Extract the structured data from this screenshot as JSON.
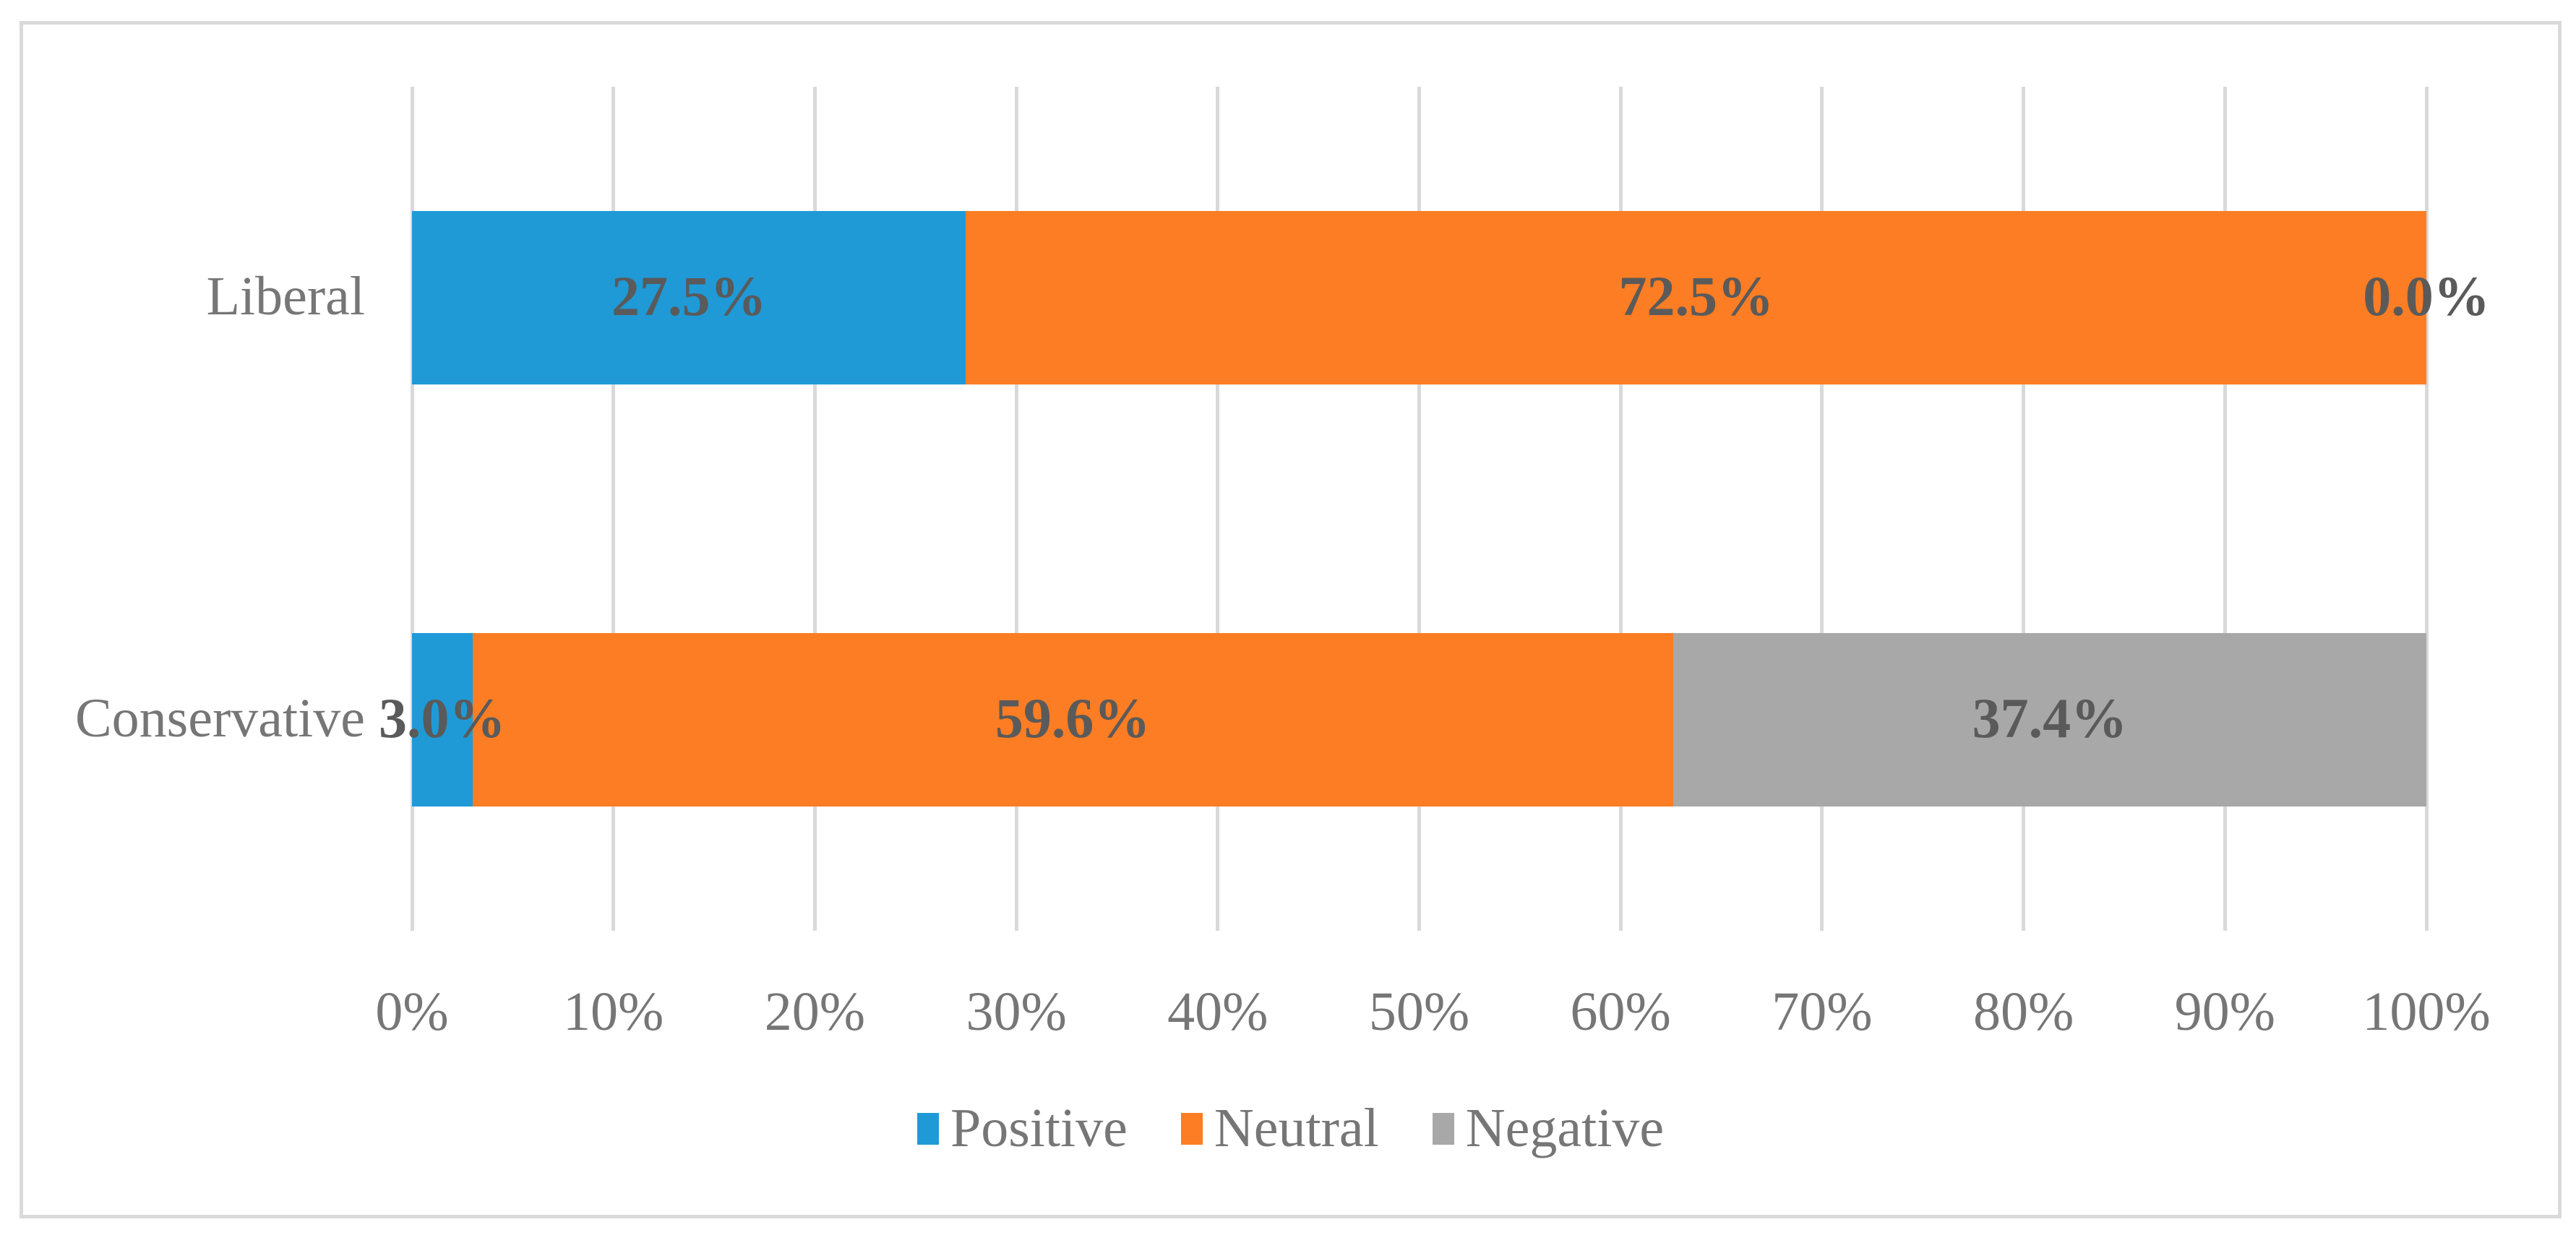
{
  "chart_data": {
    "type": "bar",
    "orientation": "horizontal",
    "stacked": true,
    "title": "",
    "xlabel": "",
    "ylabel": "",
    "xlim": [
      0,
      100
    ],
    "grid": "vertical",
    "legend_position": "bottom",
    "categories": [
      "Liberal",
      "Conservative"
    ],
    "series": [
      {
        "name": "Positive",
        "color": "#1F9AD7",
        "values": [
          27.5,
          3.0
        ]
      },
      {
        "name": "Neutral",
        "color": "#FC7D23",
        "values": [
          72.5,
          59.6
        ]
      },
      {
        "name": "Negative",
        "color": "#A8A8A8",
        "values": [
          0.0,
          37.4
        ]
      }
    ],
    "data_labels": [
      [
        "27.5%",
        "72.5%",
        "0.0%"
      ],
      [
        "3.0%",
        "59.6%",
        "37.4%"
      ]
    ],
    "x_ticks": [
      "0%",
      "10%",
      "20%",
      "30%",
      "40%",
      "50%",
      "60%",
      "70%",
      "80%",
      "90%",
      "100%"
    ]
  },
  "styles": {
    "gridline_color": "#D9D9D9",
    "frame_border_color": "#DADADA",
    "axis_text_color": "#767676",
    "data_label_color": "#5A5A5A",
    "background": "#FFFFFF"
  }
}
